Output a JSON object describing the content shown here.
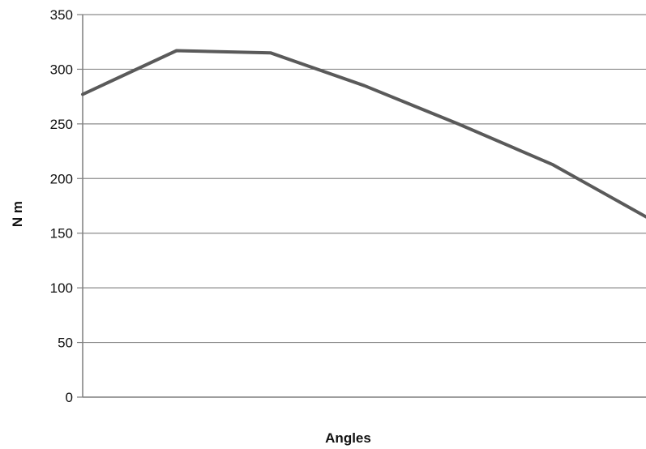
{
  "chart_data": {
    "type": "line",
    "xlabel": "Angles",
    "ylabel": "N m",
    "ylim": [
      0,
      350
    ],
    "yticks": [
      0,
      50,
      100,
      150,
      200,
      250,
      300,
      350
    ],
    "grid": "horizontal",
    "legend": "none",
    "series": [
      {
        "color": "#5a5a5a",
        "values": [
          277,
          317,
          315,
          285,
          250,
          213,
          165
        ]
      }
    ]
  }
}
